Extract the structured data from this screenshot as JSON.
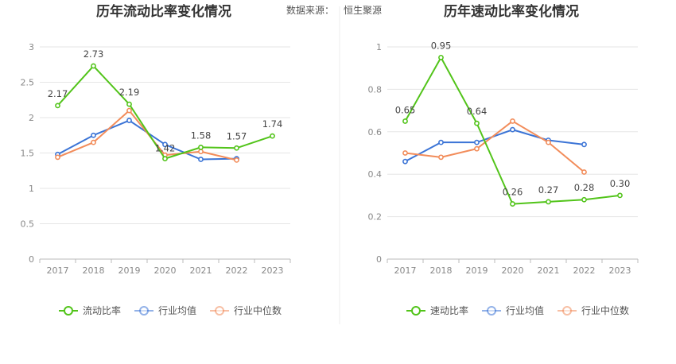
{
  "source_label": "数据来源：",
  "source_name": "恒生聚源",
  "chart_data": [
    {
      "type": "line",
      "title": "历年流动比率变化情况",
      "categories": [
        "2017",
        "2018",
        "2019",
        "2020",
        "2021",
        "2022",
        "2023"
      ],
      "ylim": [
        0,
        3
      ],
      "yticks": [
        "0",
        "0.5",
        "1",
        "1.5",
        "2",
        "2.5",
        "3"
      ],
      "grid": true,
      "legend_position": "bottom",
      "series": [
        {
          "name": "流动比率",
          "color": "#52c41a",
          "values": [
            2.17,
            2.73,
            2.19,
            1.42,
            1.58,
            1.57,
            1.74
          ],
          "labels": [
            "2.17",
            "2.73",
            "2.19",
            "1.42",
            "1.58",
            "1.57",
            "1.74"
          ]
        },
        {
          "name": "行业均值",
          "color": "#3b74d6",
          "values": [
            1.48,
            1.75,
            1.96,
            1.62,
            1.41,
            1.42,
            null
          ]
        },
        {
          "name": "行业中位数",
          "color": "#f28c5a",
          "values": [
            1.44,
            1.65,
            2.1,
            1.47,
            1.52,
            1.4,
            null
          ]
        }
      ]
    },
    {
      "type": "line",
      "title": "历年速动比率变化情况",
      "categories": [
        "2017",
        "2018",
        "2019",
        "2020",
        "2021",
        "2022",
        "2023"
      ],
      "ylim": [
        0,
        1
      ],
      "yticks": [
        "0",
        "0.2",
        "0.4",
        "0.6",
        "0.8",
        "1"
      ],
      "grid": true,
      "legend_position": "bottom",
      "series": [
        {
          "name": "速动比率",
          "color": "#52c41a",
          "values": [
            0.65,
            0.95,
            0.64,
            0.26,
            0.27,
            0.28,
            0.3
          ],
          "labels": [
            "0.65",
            "0.95",
            "0.64",
            "0.26",
            "0.27",
            "0.28",
            "0.30"
          ]
        },
        {
          "name": "行业均值",
          "color": "#3b74d6",
          "values": [
            0.46,
            0.55,
            0.55,
            0.61,
            0.56,
            0.54,
            null
          ]
        },
        {
          "name": "行业中位数",
          "color": "#f28c5a",
          "values": [
            0.5,
            0.48,
            0.52,
            0.65,
            0.55,
            0.41,
            null
          ]
        }
      ]
    }
  ]
}
